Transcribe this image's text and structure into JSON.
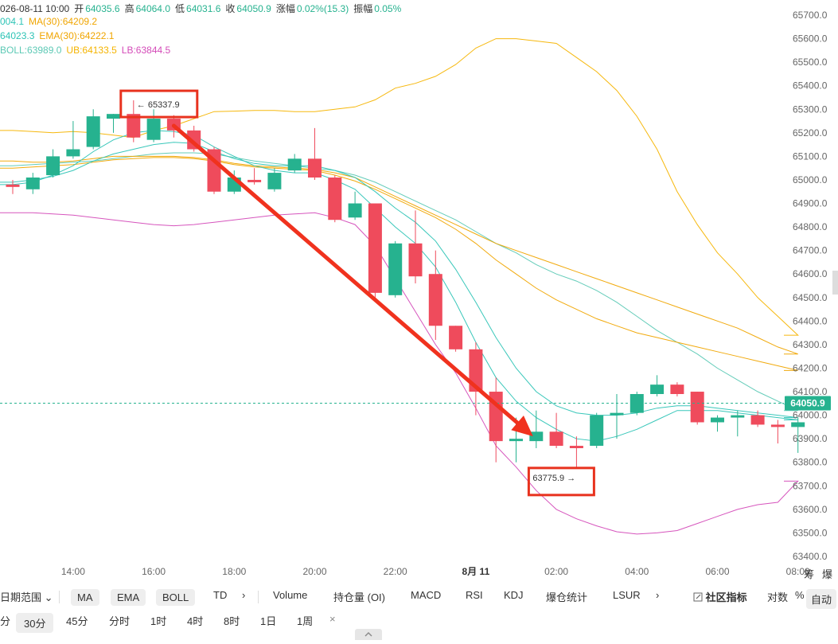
{
  "info": {
    "line1": {
      "date": "026-08-11 10:00",
      "open_label": "开",
      "open": "64035.6",
      "high_label": "高",
      "high": "64064.0",
      "low_label": "低",
      "low": "64031.6",
      "close_label": "收",
      "close": "64050.9",
      "change_label": "涨幅",
      "change": "0.02%(15.3)",
      "amp_label": "振幅",
      "amp": "0.05%"
    },
    "line2": {
      "ma_short": "004.1",
      "ma30": "MA(30):64209.2"
    },
    "line3": {
      "ema_short": "64023.3",
      "ema30": "EMA(30):64222.1"
    },
    "line4": {
      "boll": "BOLL:63989.0",
      "ub": "UB:64133.5",
      "lb": "LB:63844.5"
    }
  },
  "colors": {
    "up": "#26b28f",
    "down": "#ef4b5c",
    "ma_short": "#2ec4b6",
    "ma30": "#f0a500",
    "ema_short": "#2ec4b6",
    "ema30": "#f0a500",
    "boll": "#5cc9b5",
    "ub": "#f5b400",
    "lb": "#d44cb9",
    "arrow": "#f0321e",
    "highlight": "#e8321e",
    "price_tag": "#26b28f"
  },
  "chart_data": {
    "type": "candlestick",
    "interval": "30分",
    "ylim": [
      63400,
      65700
    ],
    "y_ticks": [
      63400,
      63500,
      63600,
      63700,
      63800,
      63900,
      64000,
      64100,
      64200,
      64300,
      64400,
      64500,
      64600,
      64700,
      64800,
      64900,
      65000,
      65100,
      65200,
      65300,
      65400,
      65500,
      65600,
      65700
    ],
    "y_tick_labels": [
      "63400.0",
      "63500.0",
      "63600.0",
      "63700.0",
      "63800.0",
      "63900.0",
      "64000.0",
      "64100.0",
      "64200.0",
      "64300.0",
      "64400.0",
      "64500.0",
      "64600.0",
      "64700.0",
      "64800.0",
      "64900.0",
      "65000.0",
      "65100.0",
      "65200.0",
      "65300.0",
      "65400.0",
      "65500.0",
      "65600.0",
      "65700.0"
    ],
    "x_ticks": [
      {
        "label": "14:00",
        "index": 3
      },
      {
        "label": "16:00",
        "index": 7
      },
      {
        "label": "18:00",
        "index": 11
      },
      {
        "label": "20:00",
        "index": 15
      },
      {
        "label": "22:00",
        "index": 19
      },
      {
        "label": "8月 11",
        "index": 23
      },
      {
        "label": "02:00",
        "index": 27
      },
      {
        "label": "04:00",
        "index": 31
      },
      {
        "label": "06:00",
        "index": 35
      },
      {
        "label": "08:00",
        "index": 39
      }
    ],
    "candles": [
      {
        "o": 64980,
        "h": 65000,
        "l": 64940,
        "c": 64970
      },
      {
        "o": 64960,
        "h": 65030,
        "l": 64940,
        "c": 65010
      },
      {
        "o": 65020,
        "h": 65130,
        "l": 65010,
        "c": 65100
      },
      {
        "o": 65100,
        "h": 65250,
        "l": 65090,
        "c": 65130
      },
      {
        "o": 65140,
        "h": 65300,
        "l": 65130,
        "c": 65270
      },
      {
        "o": 65260,
        "h": 65280,
        "l": 65200,
        "c": 65280
      },
      {
        "o": 65280,
        "h": 65338,
        "l": 65160,
        "c": 65180
      },
      {
        "o": 65170,
        "h": 65300,
        "l": 65160,
        "c": 65260
      },
      {
        "o": 65260,
        "h": 65275,
        "l": 65180,
        "c": 65210
      },
      {
        "o": 65210,
        "h": 65230,
        "l": 65120,
        "c": 65130
      },
      {
        "o": 65130,
        "h": 65140,
        "l": 64940,
        "c": 64950
      },
      {
        "o": 64950,
        "h": 65040,
        "l": 64940,
        "c": 65010
      },
      {
        "o": 65000,
        "h": 65050,
        "l": 64980,
        "c": 64990
      },
      {
        "o": 64960,
        "h": 65050,
        "l": 64950,
        "c": 65030
      },
      {
        "o": 65040,
        "h": 65110,
        "l": 65030,
        "c": 65090
      },
      {
        "o": 65090,
        "h": 65220,
        "l": 65000,
        "c": 65010
      },
      {
        "o": 65010,
        "h": 65020,
        "l": 64820,
        "c": 64830
      },
      {
        "o": 64840,
        "h": 64950,
        "l": 64830,
        "c": 64900
      },
      {
        "o": 64900,
        "h": 64900,
        "l": 64500,
        "c": 64520
      },
      {
        "o": 64510,
        "h": 64740,
        "l": 64500,
        "c": 64730
      },
      {
        "o": 64730,
        "h": 64870,
        "l": 64560,
        "c": 64590
      },
      {
        "o": 64600,
        "h": 64700,
        "l": 64320,
        "c": 64380
      },
      {
        "o": 64380,
        "h": 64380,
        "l": 64270,
        "c": 64280
      },
      {
        "o": 64280,
        "h": 64310,
        "l": 64000,
        "c": 64100
      },
      {
        "o": 64100,
        "h": 64160,
        "l": 63800,
        "c": 63890
      },
      {
        "o": 63890,
        "h": 63990,
        "l": 63800,
        "c": 63900
      },
      {
        "o": 63890,
        "h": 64020,
        "l": 63860,
        "c": 63930
      },
      {
        "o": 63930,
        "h": 64010,
        "l": 63860,
        "c": 63870
      },
      {
        "o": 63870,
        "h": 63910,
        "l": 63776,
        "c": 63860
      },
      {
        "o": 63870,
        "h": 64010,
        "l": 63860,
        "c": 64000
      },
      {
        "o": 64000,
        "h": 64090,
        "l": 63900,
        "c": 64010
      },
      {
        "o": 64010,
        "h": 64100,
        "l": 64000,
        "c": 64090
      },
      {
        "o": 64090,
        "h": 64170,
        "l": 64080,
        "c": 64130
      },
      {
        "o": 64130,
        "h": 64140,
        "l": 64080,
        "c": 64090
      },
      {
        "o": 64100,
        "h": 64100,
        "l": 63960,
        "c": 63970
      },
      {
        "o": 63970,
        "h": 64000,
        "l": 63930,
        "c": 63990
      },
      {
        "o": 63990,
        "h": 64020,
        "l": 63910,
        "c": 64000
      },
      {
        "o": 64000,
        "h": 64020,
        "l": 63950,
        "c": 63960
      },
      {
        "o": 63960,
        "h": 63980,
        "l": 63880,
        "c": 63950
      },
      {
        "o": 63950,
        "h": 63990,
        "l": 63840,
        "c": 63970
      }
    ],
    "lines": [
      {
        "name": "UB",
        "color_key": "ub",
        "values": [
          65210,
          65205,
          65200,
          65205,
          65200,
          65190,
          65180,
          65210,
          65230,
          65260,
          65290,
          65292,
          65295,
          65295,
          65290,
          65290,
          65300,
          65310,
          65340,
          65390,
          65410,
          65440,
          65490,
          65560,
          65600,
          65600,
          65590,
          65580,
          65520,
          65460,
          65380,
          65270,
          65130,
          64950,
          64810,
          64690,
          64600,
          64500,
          64420,
          64340
        ]
      },
      {
        "name": "BOLL",
        "color_key": "boll",
        "values": [
          65060,
          65065,
          65070,
          65075,
          65080,
          65090,
          65100,
          65110,
          65115,
          65115,
          65110,
          65095,
          65080,
          65070,
          65060,
          65050,
          65040,
          65020,
          64990,
          64950,
          64910,
          64870,
          64830,
          64780,
          64730,
          64690,
          64640,
          64600,
          64570,
          64530,
          64480,
          64420,
          64360,
          64310,
          64260,
          64200,
          64150,
          64100,
          64060,
          64020
        ]
      },
      {
        "name": "LB",
        "color_key": "lb",
        "values": [
          64860,
          64860,
          64855,
          64850,
          64840,
          64830,
          64820,
          64810,
          64805,
          64810,
          64820,
          64830,
          64840,
          64850,
          64855,
          64860,
          64840,
          64810,
          64720,
          64580,
          64440,
          64300,
          64180,
          64030,
          63870,
          63780,
          63680,
          63600,
          63560,
          63530,
          63505,
          63495,
          63500,
          63510,
          63540,
          63570,
          63600,
          63620,
          63630,
          63720
        ]
      },
      {
        "name": "MA30",
        "color_key": "ma30",
        "values": [
          65080,
          65075,
          65075,
          65080,
          65090,
          65100,
          65100,
          65100,
          65100,
          65095,
          65085,
          65070,
          65060,
          65055,
          65050,
          65045,
          65030,
          65010,
          64970,
          64930,
          64890,
          64850,
          64810,
          64770,
          64730,
          64700,
          64670,
          64640,
          64610,
          64580,
          64550,
          64520,
          64490,
          64460,
          64430,
          64400,
          64370,
          64330,
          64290,
          64260
        ]
      },
      {
        "name": "EMA30",
        "color_key": "ema30",
        "values": [
          65050,
          65055,
          65060,
          65065,
          65075,
          65085,
          65090,
          65095,
          65095,
          65090,
          65080,
          65065,
          65055,
          65050,
          65045,
          65040,
          65020,
          64995,
          64960,
          64920,
          64880,
          64840,
          64790,
          64730,
          64660,
          64600,
          64540,
          64490,
          64450,
          64410,
          64380,
          64350,
          64330,
          64310,
          64290,
          64270,
          64250,
          64230,
          64210,
          64190
        ]
      },
      {
        "name": "MA short",
        "color_key": "ma_short",
        "values": [
          64980,
          64990,
          65020,
          65060,
          65120,
          65170,
          65200,
          65210,
          65205,
          65190,
          65140,
          65100,
          65060,
          65040,
          65030,
          65030,
          65000,
          64960,
          64880,
          64800,
          64730,
          64630,
          64480,
          64310,
          64160,
          64060,
          63990,
          63940,
          63900,
          63890,
          63910,
          63940,
          63980,
          64020,
          64020,
          64020,
          64010,
          64000,
          63990,
          63980
        ]
      },
      {
        "name": "EMA short",
        "color_key": "ema_short",
        "values": [
          64990,
          65000,
          65015,
          65040,
          65080,
          65110,
          65130,
          65150,
          65160,
          65155,
          65120,
          65090,
          65070,
          65060,
          65060,
          65060,
          65040,
          65010,
          64950,
          64880,
          64820,
          64740,
          64620,
          64480,
          64330,
          64200,
          64100,
          64040,
          64010,
          64000,
          64000,
          64010,
          64030,
          64040,
          64040,
          64030,
          64020,
          64010,
          64000,
          63990
        ]
      }
    ],
    "last_price": 64050.9,
    "last_price_label": "64050.9",
    "annotations": {
      "high": {
        "label": "← 65337.9",
        "index": 6,
        "value": 65337.9
      },
      "low": {
        "label": "63775.9 →",
        "index": 28,
        "value": 63775.9
      },
      "arrow": {
        "from_index": 8,
        "from_value": 65230,
        "to_index": 26,
        "to_value": 63890
      }
    }
  },
  "right_edge": {
    "label1": "筹",
    "label2": "爆"
  },
  "toolbar1": {
    "range": "日期范围",
    "range_arrow": "⌄",
    "ind_main": [
      "MA",
      "EMA",
      "BOLL",
      "TD"
    ],
    "more": "›",
    "ind_sub": [
      "Volume",
      "持仓量 (OI)",
      "MACD",
      "RSI",
      "KDJ",
      "爆仓统计",
      "LSUR"
    ],
    "more2": "›",
    "community_icon": "edit-icon",
    "community": "社区指标",
    "log": "对数",
    "pct": "%",
    "auto": "自动"
  },
  "toolbar2": {
    "intervals": [
      "分",
      "30分",
      "45分",
      "分时",
      "1时",
      "4时",
      "8时",
      "1日",
      "1周"
    ],
    "active": "30分",
    "close": "×"
  }
}
